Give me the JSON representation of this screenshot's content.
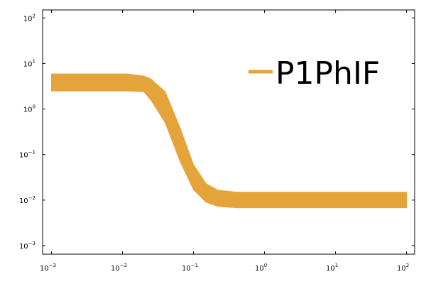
{
  "chart_data": {
    "type": "area",
    "x_scale": "log",
    "y_scale": "log",
    "xlim": [
      0.00075,
      130
    ],
    "ylim": [
      0.00065,
      150
    ],
    "x_ticks": [
      {
        "base": "10",
        "exp": "−3",
        "value": 0.001
      },
      {
        "base": "10",
        "exp": "−2",
        "value": 0.01
      },
      {
        "base": "10",
        "exp": "−1",
        "value": 0.1
      },
      {
        "base": "10",
        "exp": "0",
        "value": 1
      },
      {
        "base": "10",
        "exp": "1",
        "value": 10
      },
      {
        "base": "10",
        "exp": "2",
        "value": 100
      }
    ],
    "y_ticks": [
      {
        "base": "10",
        "exp": "−3",
        "value": 0.001
      },
      {
        "base": "10",
        "exp": "−2",
        "value": 0.01
      },
      {
        "base": "10",
        "exp": "−1",
        "value": 0.1
      },
      {
        "base": "10",
        "exp": "0",
        "value": 1
      },
      {
        "base": "10",
        "exp": "1",
        "value": 10
      },
      {
        "base": "10",
        "exp": "2",
        "value": 100
      }
    ],
    "grid": false,
    "legend": {
      "position": "top-right",
      "entries": [
        "P1PhIF"
      ]
    },
    "series": [
      {
        "name": "P1PhIF",
        "color": "#e5a43a",
        "x": [
          0.001,
          0.0117,
          0.02,
          0.025,
          0.04,
          0.065,
          0.1,
          0.15,
          0.22,
          0.4,
          1,
          100
        ],
        "upper": [
          5.9,
          5.9,
          5.3,
          4.6,
          2.4,
          0.38,
          0.06,
          0.023,
          0.0165,
          0.015,
          0.015,
          0.015
        ],
        "lower": [
          2.5,
          2.5,
          2.4,
          1.6,
          0.5,
          0.07,
          0.017,
          0.009,
          0.0073,
          0.0068,
          0.0068,
          0.0068
        ]
      }
    ],
    "title": "",
    "xlabel": "",
    "ylabel": ""
  }
}
